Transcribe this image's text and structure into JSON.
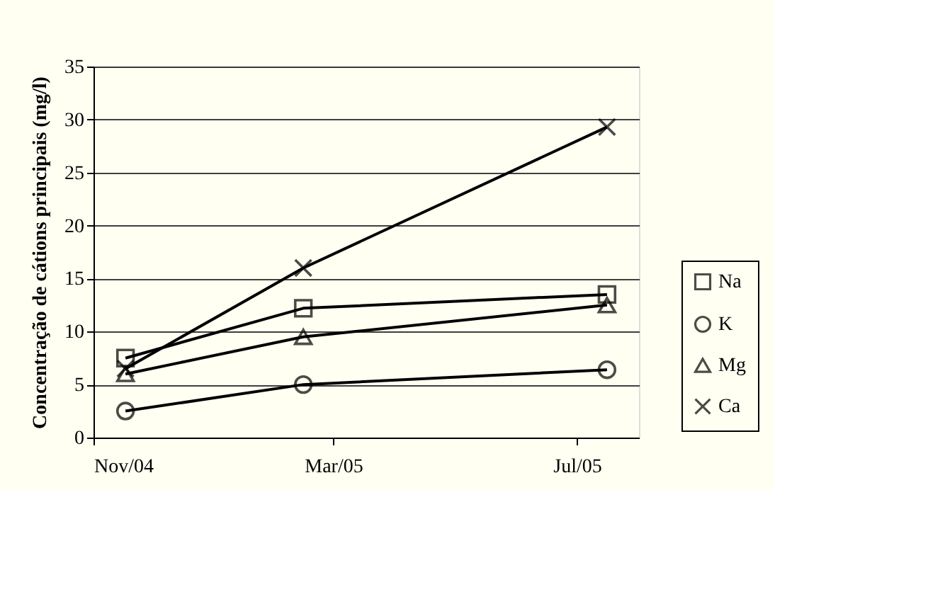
{
  "chart_data": {
    "type": "line",
    "ylabel": "Concentração de cátions principais (mg/l)",
    "x": [
      "2004-11-17",
      "2005-02-14",
      "2005-07-16"
    ],
    "xlim": [
      "2004-11-01",
      "2005-08-01"
    ],
    "xticks": [
      {
        "value": "2004-11-01",
        "label": "Nov/04"
      },
      {
        "value": "2005-03-01",
        "label": "Mar/05"
      },
      {
        "value": "2005-07-01",
        "label": "Jul/05"
      }
    ],
    "ylim": [
      0,
      35
    ],
    "yticks": [
      0,
      5,
      10,
      15,
      20,
      25,
      30,
      35
    ],
    "grid": "y",
    "legend": "bottom right",
    "line_style": "solid",
    "series": [
      {
        "name": "Na",
        "color": "#000000",
        "marker": "square",
        "values": [
          7.5,
          12.2,
          13.5
        ]
      },
      {
        "name": "K",
        "color": "#000000",
        "marker": "circle",
        "values": [
          2.5,
          5.0,
          6.4
        ]
      },
      {
        "name": "Mg",
        "color": "#000000",
        "marker": "triangle",
        "values": [
          6.0,
          9.5,
          12.5
        ]
      },
      {
        "name": "Ca",
        "color": "#000000",
        "marker": "cross",
        "values": [
          6.5,
          16.0,
          29.3
        ]
      }
    ]
  }
}
